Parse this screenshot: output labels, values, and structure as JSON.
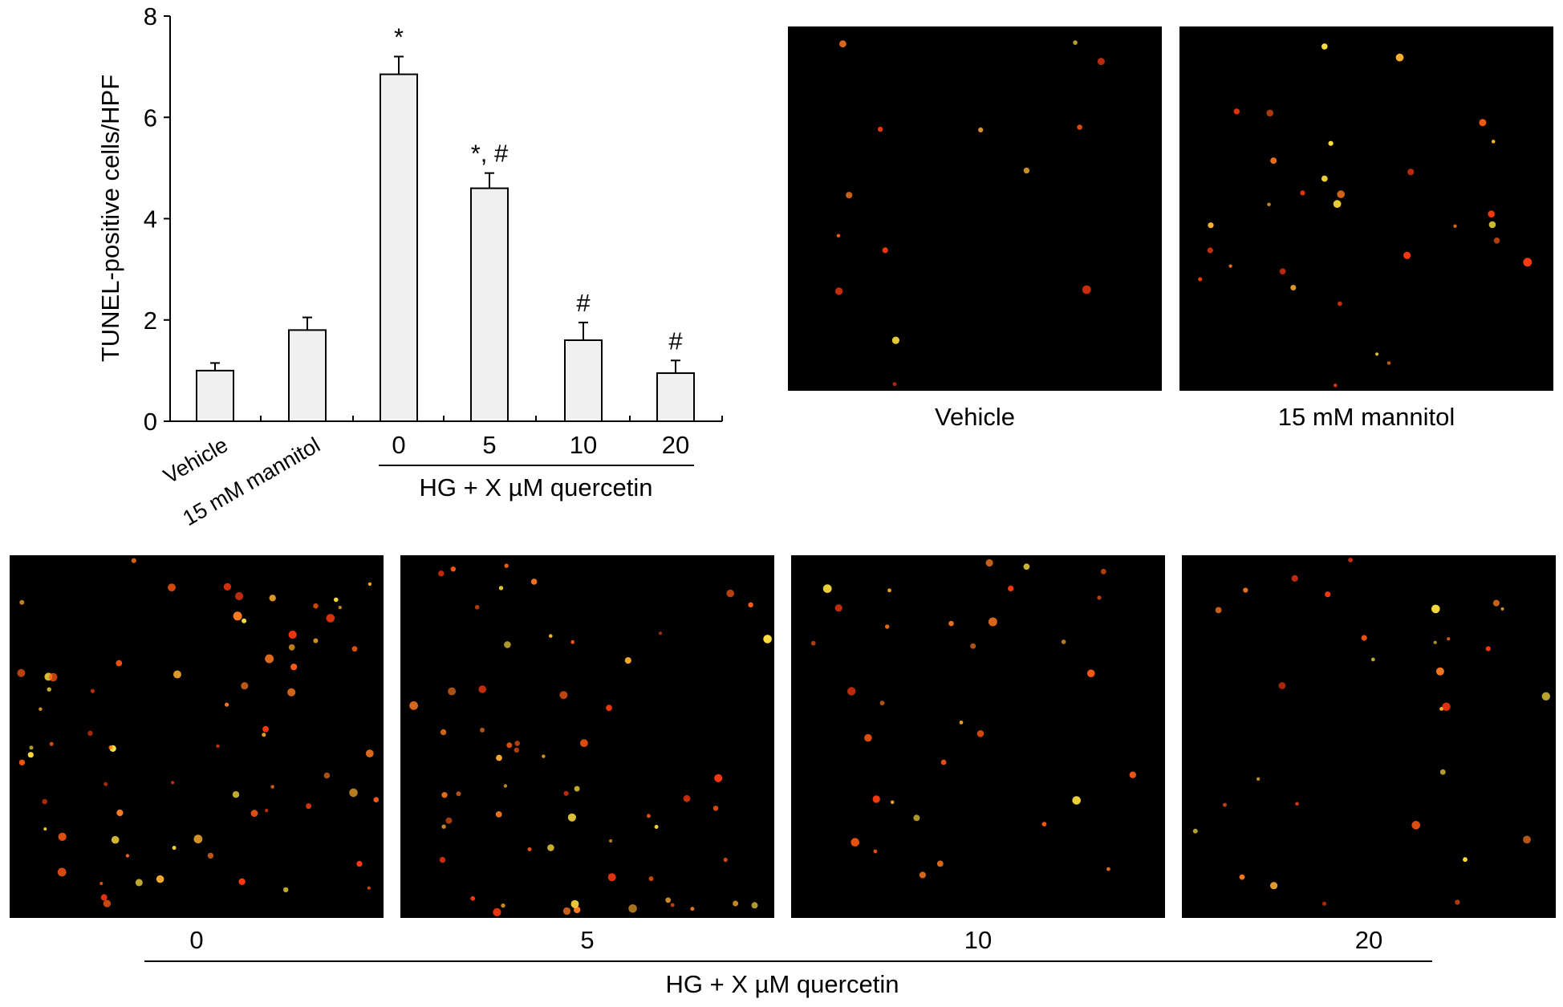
{
  "chart_data": {
    "type": "bar",
    "ylabel": "TUNEL-positive cells/HPF",
    "ylim": [
      0,
      8
    ],
    "yticks": [
      "0",
      "2",
      "4",
      "6",
      "8"
    ],
    "categories": [
      "Vehicle",
      "15 mM mannitol",
      "0",
      "5",
      "10",
      "20"
    ],
    "values": [
      1.0,
      1.8,
      6.85,
      4.6,
      1.6,
      0.95
    ],
    "errors": [
      0.15,
      0.25,
      0.35,
      0.3,
      0.35,
      0.25
    ],
    "significance": [
      "",
      "",
      "*",
      "*, #",
      "#",
      "#"
    ],
    "group_label": "HG + X µM quercetin",
    "bar_fill": "#f0f0f0",
    "bar_stroke": "#000000"
  },
  "panels": {
    "top": [
      {
        "caption": "Vehicle",
        "density": 14,
        "seed": 11
      },
      {
        "caption": "15 mM mannitol",
        "density": 30,
        "seed": 23
      }
    ],
    "bottom": [
      {
        "caption": "0",
        "density": 70,
        "seed": 37
      },
      {
        "caption": "5",
        "density": 60,
        "seed": 41
      },
      {
        "caption": "10",
        "density": 32,
        "seed": 53
      },
      {
        "caption": "20",
        "density": 30,
        "seed": 67
      }
    ],
    "group_label": "HG + X µM quercetin",
    "background": "#000000",
    "spot_colors": [
      "#ff3a10",
      "#ff5a12",
      "#ff7a20",
      "#ffb030",
      "#ffe040"
    ]
  }
}
